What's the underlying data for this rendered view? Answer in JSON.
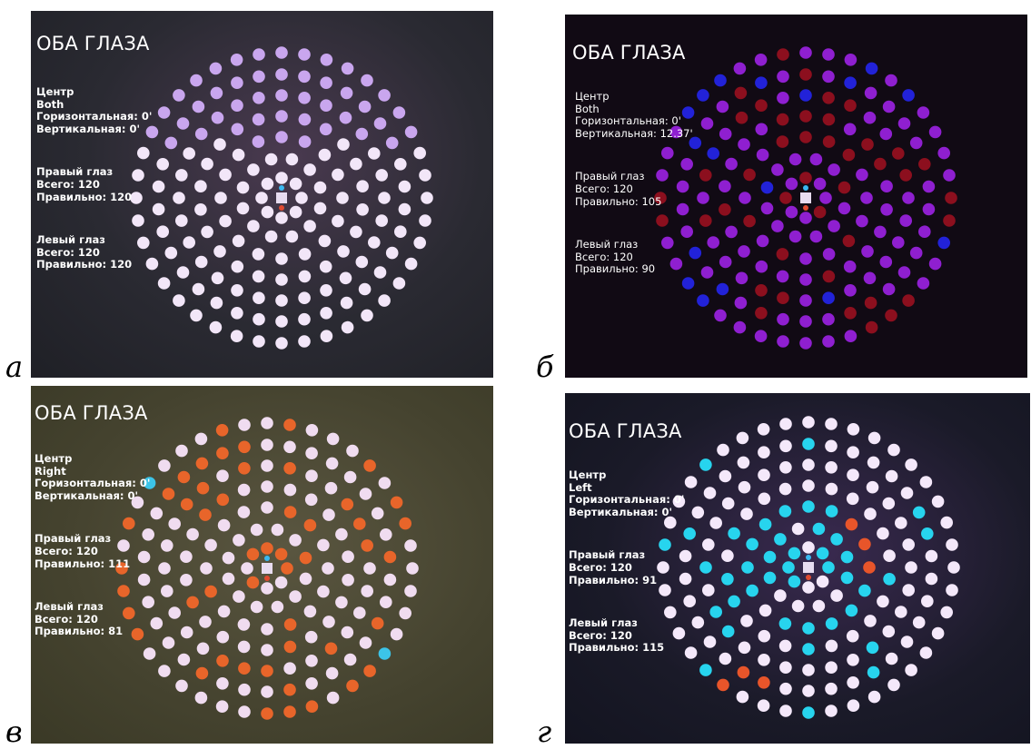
{
  "panels": [
    {
      "id": "a",
      "caption": "а",
      "title": "ОБА ГЛАЗА",
      "center_label": "Центр",
      "mode": "Both",
      "horizontal": "Горизонтальная: 0'",
      "vertical": "Вертикальная: 0'",
      "right_eye": {
        "heading": "Правый глаз",
        "total": "Всего: 120",
        "correct": "Правильно: 120"
      },
      "left_eye": {
        "heading": "Левый глаз",
        "total": "Всего: 120",
        "correct": "Правильно: 120"
      }
    },
    {
      "id": "b",
      "caption": "б",
      "title": "ОБА ГЛАЗА",
      "center_label": "Центр",
      "mode": "Both",
      "horizontal": "Горизонтальная: 0'",
      "vertical": "Вертикальная: 12.37'",
      "right_eye": {
        "heading": "Правый глаз",
        "total": "Всего: 120",
        "correct": "Правильно: 105"
      },
      "left_eye": {
        "heading": "Левый глаз",
        "total": "Всего: 120",
        "correct": "Правильно: 90"
      }
    },
    {
      "id": "c",
      "caption": "в",
      "title": "ОБА ГЛАЗА",
      "center_label": "Центр",
      "mode": "Right",
      "horizontal": "Горизонтальная: 0'",
      "vertical": "Вертикальная: 0'",
      "right_eye": {
        "heading": "Правый глаз",
        "total": "Всего: 120",
        "correct": "Правильно: 111"
      },
      "left_eye": {
        "heading": "Левый глаз",
        "total": "Всего: 120",
        "correct": "Правильно: 81"
      }
    },
    {
      "id": "d",
      "caption": "г",
      "title": "ОБА ГЛАЗА",
      "center_label": "Центр",
      "mode": "Left",
      "horizontal": "Горизонтальная: 0'",
      "vertical": "Вертикальная: 0'",
      "right_eye": {
        "heading": "Правый глаз",
        "total": "Всего: 120",
        "correct": "Правильно: 91"
      },
      "left_eye": {
        "heading": "Левый глаз",
        "total": "Всего: 120",
        "correct": "Правильно: 115"
      }
    }
  ],
  "colors": {
    "dot_correct_a": "#f2e6f8",
    "dot_outer_a": "#c9a6ee",
    "dot_purple_b": "#8f1fd0",
    "dot_red_b": "#8c0f1e",
    "dot_blue_b": "#2222d8",
    "dot_correct_c": "#f0dcf0",
    "dot_orange_c": "#e8652a",
    "dot_cyan_c": "#3cc4e8",
    "dot_correct_d": "#f4e8fa",
    "dot_cyan_d": "#27d4ee",
    "dot_orange_d": "#e8552a",
    "fixation_square": "#e8dcf0",
    "fixation_red": "#e04a30",
    "fixation_blue": "#3ab8f0"
  }
}
